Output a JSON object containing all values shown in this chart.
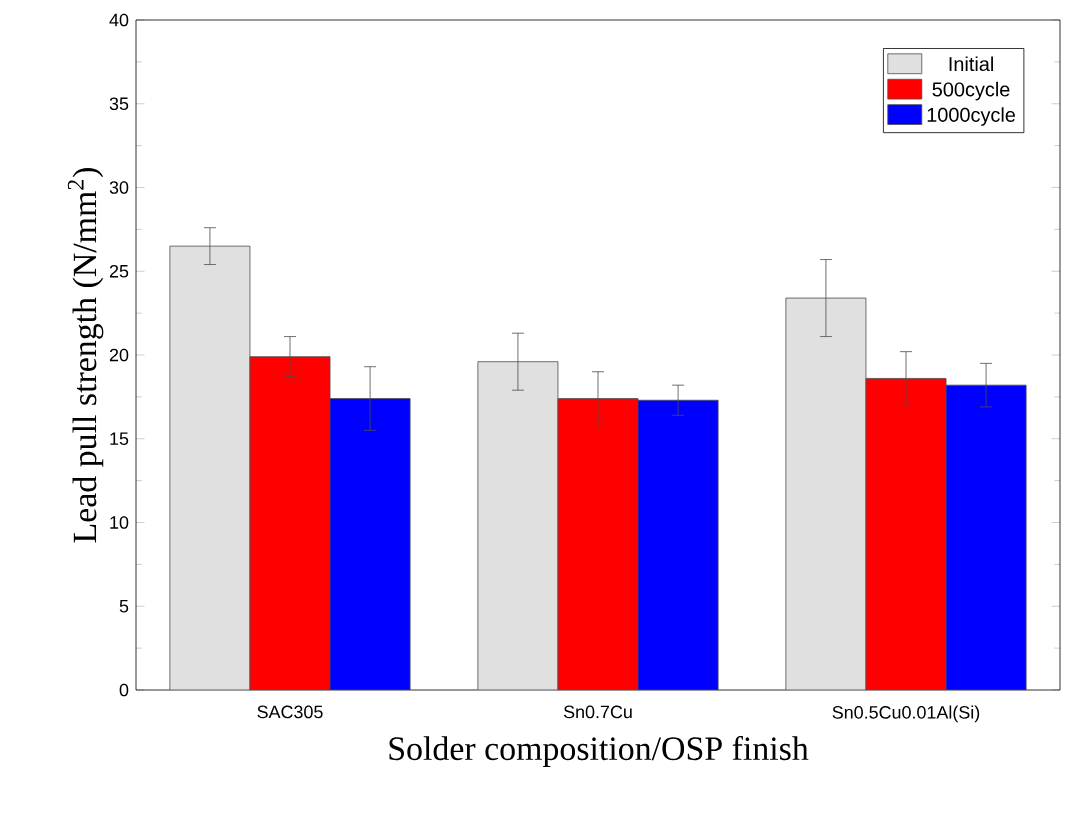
{
  "chart_data": {
    "type": "bar",
    "xlabel": "Solder composition/OSP finish",
    "ylabel": "Lead pull strength (N/mm$^{2}$)",
    "categories": [
      "SAC305",
      "Sn0.7Cu",
      "Sn0.5Cu0.01Al(Si)"
    ],
    "series": [
      {
        "name": "Initial",
        "color": "#e0e0e0",
        "values": [
          26.5,
          19.6,
          23.4
        ],
        "errors": [
          1.1,
          1.7,
          2.3
        ]
      },
      {
        "name": "500cycle",
        "color": "#ff0000",
        "values": [
          19.9,
          17.4,
          18.6
        ],
        "errors": [
          1.2,
          1.6,
          1.6
        ]
      },
      {
        "name": "1000cycle",
        "color": "#0000ff",
        "values": [
          17.4,
          17.3,
          18.2
        ],
        "errors": [
          1.9,
          0.9,
          1.3
        ]
      }
    ],
    "ylim": [
      0,
      40
    ],
    "yticks": [
      0,
      5,
      10,
      15,
      20,
      25,
      30,
      35,
      40
    ],
    "grid": false,
    "legend": "top right"
  }
}
